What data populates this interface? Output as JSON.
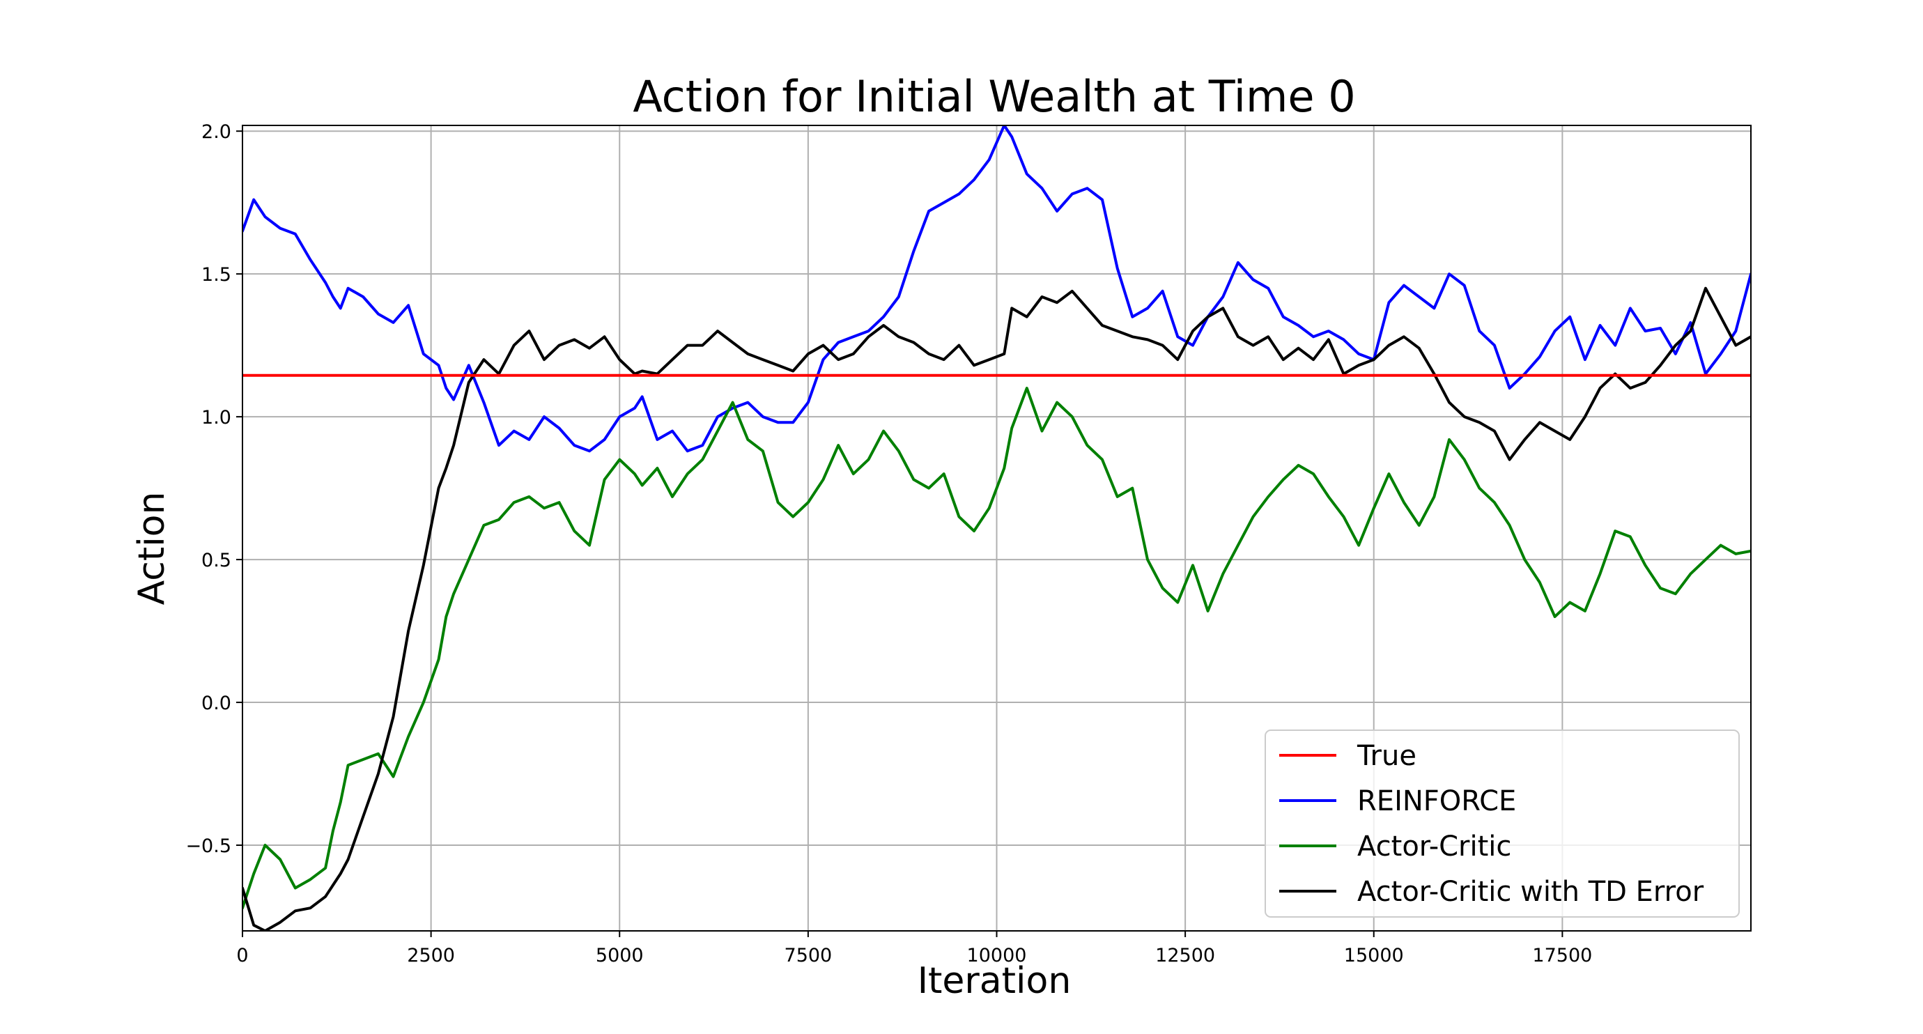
{
  "chart_data": {
    "type": "line",
    "title": "Action for Initial Wealth at Time 0",
    "xlabel": "Iteration",
    "ylabel": "Action",
    "xlim": [
      0,
      20000
    ],
    "ylim": [
      -0.8,
      2.02
    ],
    "xticks": [
      0,
      2500,
      5000,
      7500,
      10000,
      12500,
      15000,
      17500
    ],
    "yticks": [
      -0.5,
      0.0,
      0.5,
      1.0,
      1.5,
      2.0
    ],
    "xtick_labels": [
      "0",
      "2500",
      "5000",
      "7500",
      "10000",
      "12500",
      "15000",
      "17500"
    ],
    "ytick_labels": [
      "−0.5",
      "0.0",
      "0.5",
      "1.0",
      "1.5",
      "2.0"
    ],
    "grid": true,
    "legend_position": "bottom-right",
    "series": [
      {
        "name": "True",
        "color": "#ff0000",
        "x": [
          0,
          20000
        ],
        "y": [
          1.145,
          1.145
        ]
      },
      {
        "name": "REINFORCE",
        "color": "#0000ff",
        "x": [
          0,
          150,
          300,
          500,
          700,
          900,
          1100,
          1200,
          1300,
          1400,
          1600,
          1800,
          2000,
          2200,
          2400,
          2600,
          2700,
          2800,
          3000,
          3200,
          3400,
          3600,
          3800,
          4000,
          4200,
          4400,
          4600,
          4800,
          5000,
          5200,
          5300,
          5500,
          5700,
          5900,
          6100,
          6300,
          6500,
          6700,
          6900,
          7100,
          7300,
          7500,
          7700,
          7900,
          8100,
          8300,
          8500,
          8700,
          8900,
          9100,
          9300,
          9500,
          9700,
          9900,
          10100,
          10200,
          10400,
          10600,
          10800,
          11000,
          11200,
          11400,
          11600,
          11800,
          12000,
          12200,
          12400,
          12600,
          12800,
          13000,
          13200,
          13400,
          13600,
          13800,
          14000,
          14200,
          14400,
          14600,
          14800,
          15000,
          15200,
          15400,
          15600,
          15800,
          16000,
          16200,
          16400,
          16600,
          16800,
          17000,
          17200,
          17400,
          17600,
          17800,
          18000,
          18200,
          18400,
          18600,
          18800,
          19000,
          19200,
          19400,
          19600,
          19800,
          20000
        ],
        "y": [
          1.65,
          1.76,
          1.7,
          1.66,
          1.64,
          1.55,
          1.47,
          1.42,
          1.38,
          1.45,
          1.42,
          1.36,
          1.33,
          1.39,
          1.22,
          1.18,
          1.1,
          1.06,
          1.18,
          1.05,
          0.9,
          0.95,
          0.92,
          1.0,
          0.96,
          0.9,
          0.88,
          0.92,
          1.0,
          1.03,
          1.07,
          0.92,
          0.95,
          0.88,
          0.9,
          1.0,
          1.03,
          1.05,
          1.0,
          0.98,
          0.98,
          1.05,
          1.2,
          1.26,
          1.28,
          1.3,
          1.35,
          1.42,
          1.58,
          1.72,
          1.75,
          1.78,
          1.83,
          1.9,
          2.02,
          1.98,
          1.85,
          1.8,
          1.72,
          1.78,
          1.8,
          1.76,
          1.52,
          1.35,
          1.38,
          1.44,
          1.28,
          1.25,
          1.35,
          1.42,
          1.54,
          1.48,
          1.45,
          1.35,
          1.32,
          1.28,
          1.3,
          1.27,
          1.22,
          1.2,
          1.4,
          1.46,
          1.42,
          1.38,
          1.5,
          1.46,
          1.3,
          1.25,
          1.1,
          1.15,
          1.21,
          1.3,
          1.35,
          1.2,
          1.32,
          1.25,
          1.38,
          1.3,
          1.31,
          1.22,
          1.33,
          1.15,
          1.22,
          1.3,
          1.5
        ]
      },
      {
        "name": "Actor-Critic",
        "color": "#008000",
        "x": [
          0,
          150,
          300,
          500,
          700,
          900,
          1100,
          1200,
          1300,
          1400,
          1600,
          1800,
          2000,
          2200,
          2400,
          2600,
          2700,
          2800,
          3000,
          3200,
          3400,
          3600,
          3800,
          4000,
          4200,
          4400,
          4600,
          4800,
          5000,
          5200,
          5300,
          5500,
          5700,
          5900,
          6100,
          6300,
          6500,
          6700,
          6900,
          7100,
          7300,
          7500,
          7700,
          7900,
          8100,
          8300,
          8500,
          8700,
          8900,
          9100,
          9300,
          9500,
          9700,
          9900,
          10100,
          10200,
          10400,
          10600,
          10800,
          11000,
          11200,
          11400,
          11600,
          11800,
          12000,
          12200,
          12400,
          12600,
          12800,
          13000,
          13200,
          13400,
          13600,
          13800,
          14000,
          14200,
          14400,
          14600,
          14800,
          15000,
          15200,
          15400,
          15600,
          15800,
          16000,
          16200,
          16400,
          16600,
          16800,
          17000,
          17200,
          17400,
          17600,
          17800,
          18000,
          18200,
          18400,
          18600,
          18800,
          19000,
          19200,
          19400,
          19600,
          19800,
          20000
        ],
        "y": [
          -0.72,
          -0.6,
          -0.5,
          -0.55,
          -0.65,
          -0.62,
          -0.58,
          -0.45,
          -0.35,
          -0.22,
          -0.2,
          -0.18,
          -0.26,
          -0.12,
          0.0,
          0.15,
          0.3,
          0.38,
          0.5,
          0.62,
          0.64,
          0.7,
          0.72,
          0.68,
          0.7,
          0.6,
          0.55,
          0.78,
          0.85,
          0.8,
          0.76,
          0.82,
          0.72,
          0.8,
          0.85,
          0.95,
          1.05,
          0.92,
          0.88,
          0.7,
          0.65,
          0.7,
          0.78,
          0.9,
          0.8,
          0.85,
          0.95,
          0.88,
          0.78,
          0.75,
          0.8,
          0.65,
          0.6,
          0.68,
          0.82,
          0.96,
          1.1,
          0.95,
          1.05,
          1.0,
          0.9,
          0.85,
          0.72,
          0.75,
          0.5,
          0.4,
          0.35,
          0.48,
          0.32,
          0.45,
          0.55,
          0.65,
          0.72,
          0.78,
          0.83,
          0.8,
          0.72,
          0.65,
          0.55,
          0.68,
          0.8,
          0.7,
          0.62,
          0.72,
          0.92,
          0.85,
          0.75,
          0.7,
          0.62,
          0.5,
          0.42,
          0.3,
          0.35,
          0.32,
          0.45,
          0.6,
          0.58,
          0.48,
          0.4,
          0.38,
          0.45,
          0.5,
          0.55,
          0.52,
          0.53
        ]
      },
      {
        "name": "Actor-Critic with TD Error",
        "color": "#000000",
        "x": [
          0,
          150,
          300,
          500,
          700,
          900,
          1100,
          1200,
          1300,
          1400,
          1600,
          1800,
          2000,
          2200,
          2400,
          2600,
          2700,
          2800,
          3000,
          3200,
          3400,
          3600,
          3800,
          4000,
          4200,
          4400,
          4600,
          4800,
          5000,
          5200,
          5300,
          5500,
          5700,
          5900,
          6100,
          6300,
          6500,
          6700,
          6900,
          7100,
          7300,
          7500,
          7700,
          7900,
          8100,
          8300,
          8500,
          8700,
          8900,
          9100,
          9300,
          9500,
          9700,
          9900,
          10100,
          10200,
          10400,
          10600,
          10800,
          11000,
          11200,
          11400,
          11600,
          11800,
          12000,
          12200,
          12400,
          12600,
          12800,
          13000,
          13200,
          13400,
          13600,
          13800,
          14000,
          14200,
          14400,
          14600,
          14800,
          15000,
          15200,
          15400,
          15600,
          15800,
          16000,
          16200,
          16400,
          16600,
          16800,
          17000,
          17200,
          17400,
          17600,
          17800,
          18000,
          18200,
          18400,
          18600,
          18800,
          19000,
          19200,
          19400,
          19600,
          19800,
          20000
        ],
        "y": [
          -0.65,
          -0.78,
          -0.8,
          -0.77,
          -0.73,
          -0.72,
          -0.68,
          -0.64,
          -0.6,
          -0.55,
          -0.4,
          -0.25,
          -0.05,
          0.25,
          0.48,
          0.75,
          0.82,
          0.9,
          1.12,
          1.2,
          1.15,
          1.25,
          1.3,
          1.2,
          1.25,
          1.27,
          1.24,
          1.28,
          1.2,
          1.15,
          1.16,
          1.15,
          1.2,
          1.25,
          1.25,
          1.3,
          1.26,
          1.22,
          1.2,
          1.18,
          1.16,
          1.22,
          1.25,
          1.2,
          1.22,
          1.28,
          1.32,
          1.28,
          1.26,
          1.22,
          1.2,
          1.25,
          1.18,
          1.2,
          1.22,
          1.38,
          1.35,
          1.42,
          1.4,
          1.44,
          1.38,
          1.32,
          1.3,
          1.28,
          1.27,
          1.25,
          1.2,
          1.3,
          1.35,
          1.38,
          1.28,
          1.25,
          1.28,
          1.2,
          1.24,
          1.2,
          1.27,
          1.15,
          1.18,
          1.2,
          1.25,
          1.28,
          1.24,
          1.15,
          1.05,
          1.0,
          0.98,
          0.95,
          0.85,
          0.92,
          0.98,
          0.95,
          0.92,
          1.0,
          1.1,
          1.15,
          1.1,
          1.12,
          1.18,
          1.25,
          1.3,
          1.45,
          1.35,
          1.25,
          1.28
        ]
      }
    ]
  }
}
